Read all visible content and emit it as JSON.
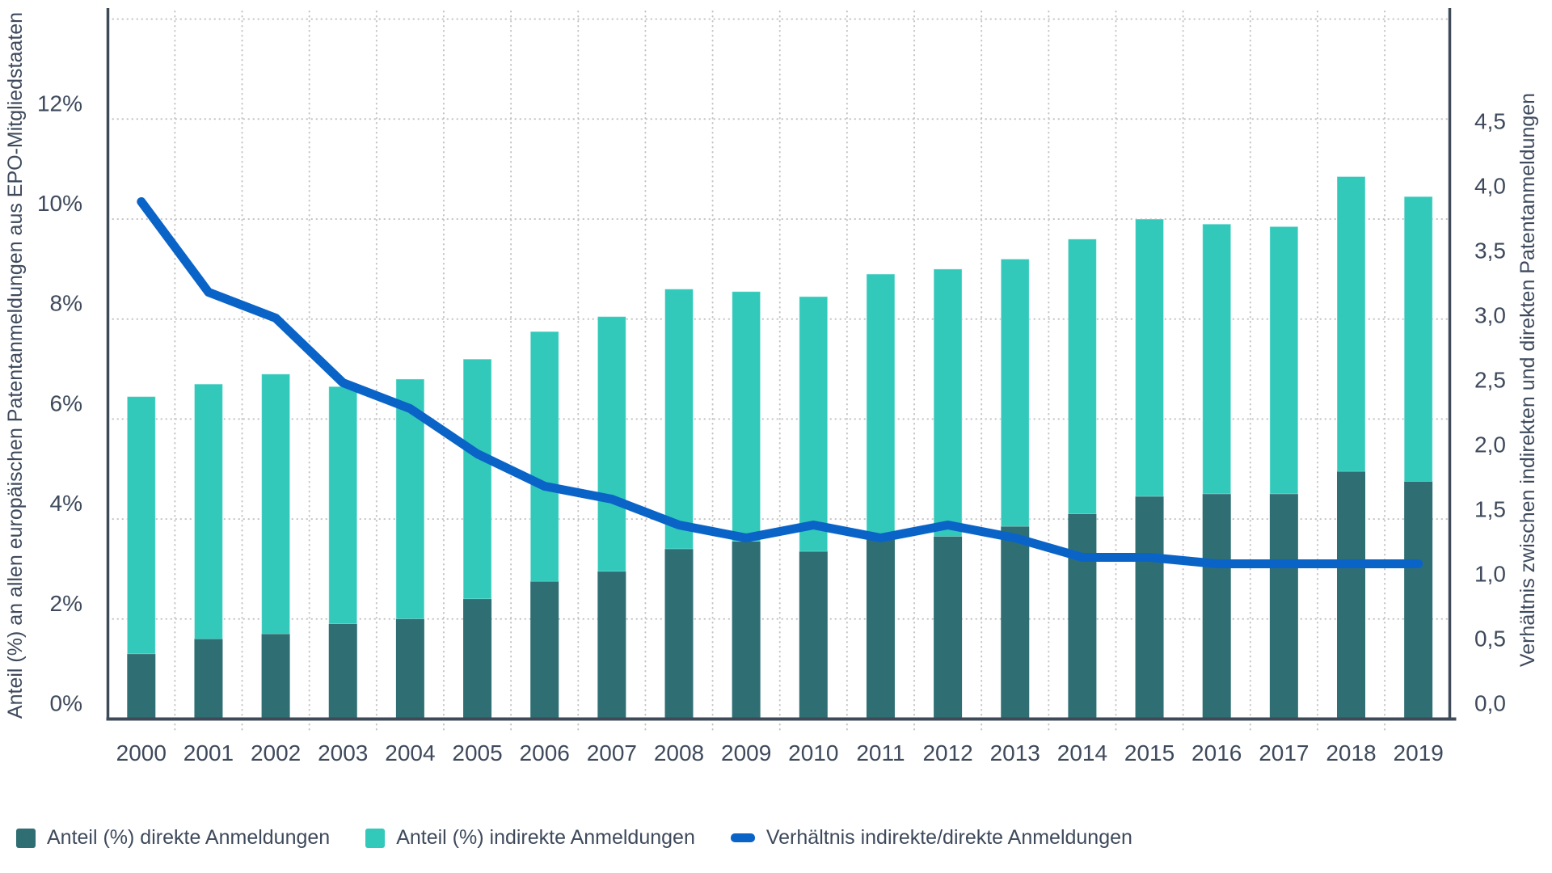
{
  "page": {
    "background": "#FFFFFF"
  },
  "chart_data": {
    "type": "bar",
    "subtype": "stacked-bars-with-line",
    "categories": [
      "2000",
      "2001",
      "2002",
      "2003",
      "2004",
      "2005",
      "2006",
      "2007",
      "2008",
      "2009",
      "2010",
      "2011",
      "2012",
      "2013",
      "2014",
      "2015",
      "2016",
      "2017",
      "2018",
      "2019"
    ],
    "series": [
      {
        "name": "Anteil (%) direkte Anmeldungen",
        "type": "bar",
        "stack": "shares",
        "axis": "left",
        "color": "#2F6F74",
        "values": [
          1.3,
          1.6,
          1.7,
          1.9,
          2.0,
          2.4,
          2.75,
          2.95,
          3.4,
          3.55,
          3.35,
          3.65,
          3.65,
          3.85,
          4.1,
          4.45,
          4.5,
          4.5,
          4.95,
          4.75
        ]
      },
      {
        "name": "Anteil (%) indirekte Anmeldungen",
        "type": "bar",
        "stack": "shares",
        "axis": "left",
        "color": "#32C9BB",
        "values": [
          5.15,
          5.1,
          5.2,
          4.75,
          4.8,
          4.8,
          5.0,
          5.1,
          5.2,
          5.0,
          5.1,
          5.25,
          5.35,
          5.35,
          5.5,
          5.55,
          5.4,
          5.35,
          5.9,
          5.7
        ]
      },
      {
        "name": "Verhältnis indirekte/direkte Anmeldungen",
        "type": "line",
        "axis": "right",
        "color": "#0A64C8",
        "values": [
          4.0,
          3.3,
          3.1,
          2.6,
          2.4,
          2.05,
          1.8,
          1.7,
          1.5,
          1.4,
          1.5,
          1.4,
          1.5,
          1.4,
          1.25,
          1.25,
          1.2,
          1.2,
          1.2,
          1.2
        ]
      }
    ],
    "left_axis": {
      "title": "Anteil (%) an allen europäischen Patentanmeldungen aus EPO-Mitgliedstaaten",
      "tick_labels": [
        "0%",
        "2%",
        "4%",
        "6%",
        "8%",
        "10%",
        "12%"
      ],
      "tick_values": [
        0,
        2,
        4,
        6,
        8,
        10,
        12
      ],
      "range": [
        0,
        14.1
      ]
    },
    "right_axis": {
      "title": "Verhältnis zwischen indirekten und direkten Patentanmeldungen",
      "tick_labels": [
        "0,0",
        "0,5",
        "1,0",
        "1,5",
        "2,0",
        "2,5",
        "3,0",
        "3,5",
        "4,0",
        "4,5"
      ],
      "tick_values": [
        0,
        0.5,
        1,
        1.5,
        2,
        2.5,
        3,
        3.5,
        4,
        4.5
      ],
      "range": [
        0,
        5.45
      ]
    },
    "grid": {
      "horizontal": "dotted every 2% up to 14%",
      "vertical": "dotted between year categories",
      "color": "#C3C3C3"
    },
    "text_color": "#3E4A5C",
    "axis_line_color": "#3E4A58",
    "legend_position": "bottom-left"
  },
  "legend": {
    "items": [
      {
        "label": "Anteil (%) direkte Anmeldungen",
        "color": "#2F6F74",
        "shape": "square"
      },
      {
        "label": "Anteil (%) indirekte Anmeldungen",
        "color": "#32C9BB",
        "shape": "square"
      },
      {
        "label": "Verhältnis indirekte/direkte Anmeldungen",
        "color": "#0A64C8",
        "shape": "line"
      }
    ]
  }
}
